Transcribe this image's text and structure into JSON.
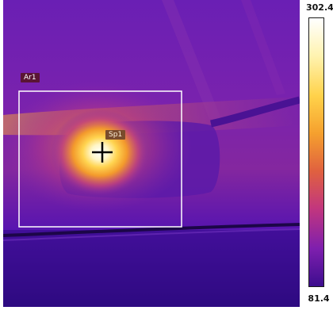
{
  "thermal_image": {
    "palette": [
      "#ffffff",
      "#fff3b0",
      "#ffd24a",
      "#f5a02e",
      "#e0613f",
      "#c2367e",
      "#7e1fae",
      "#3c0d8e"
    ],
    "roi_color": "#ffffff",
    "area": {
      "label": "Ar1"
    },
    "spot": {
      "label": "Sp1"
    }
  },
  "temperature_scale": {
    "max": "302.4",
    "min": "81.4"
  }
}
